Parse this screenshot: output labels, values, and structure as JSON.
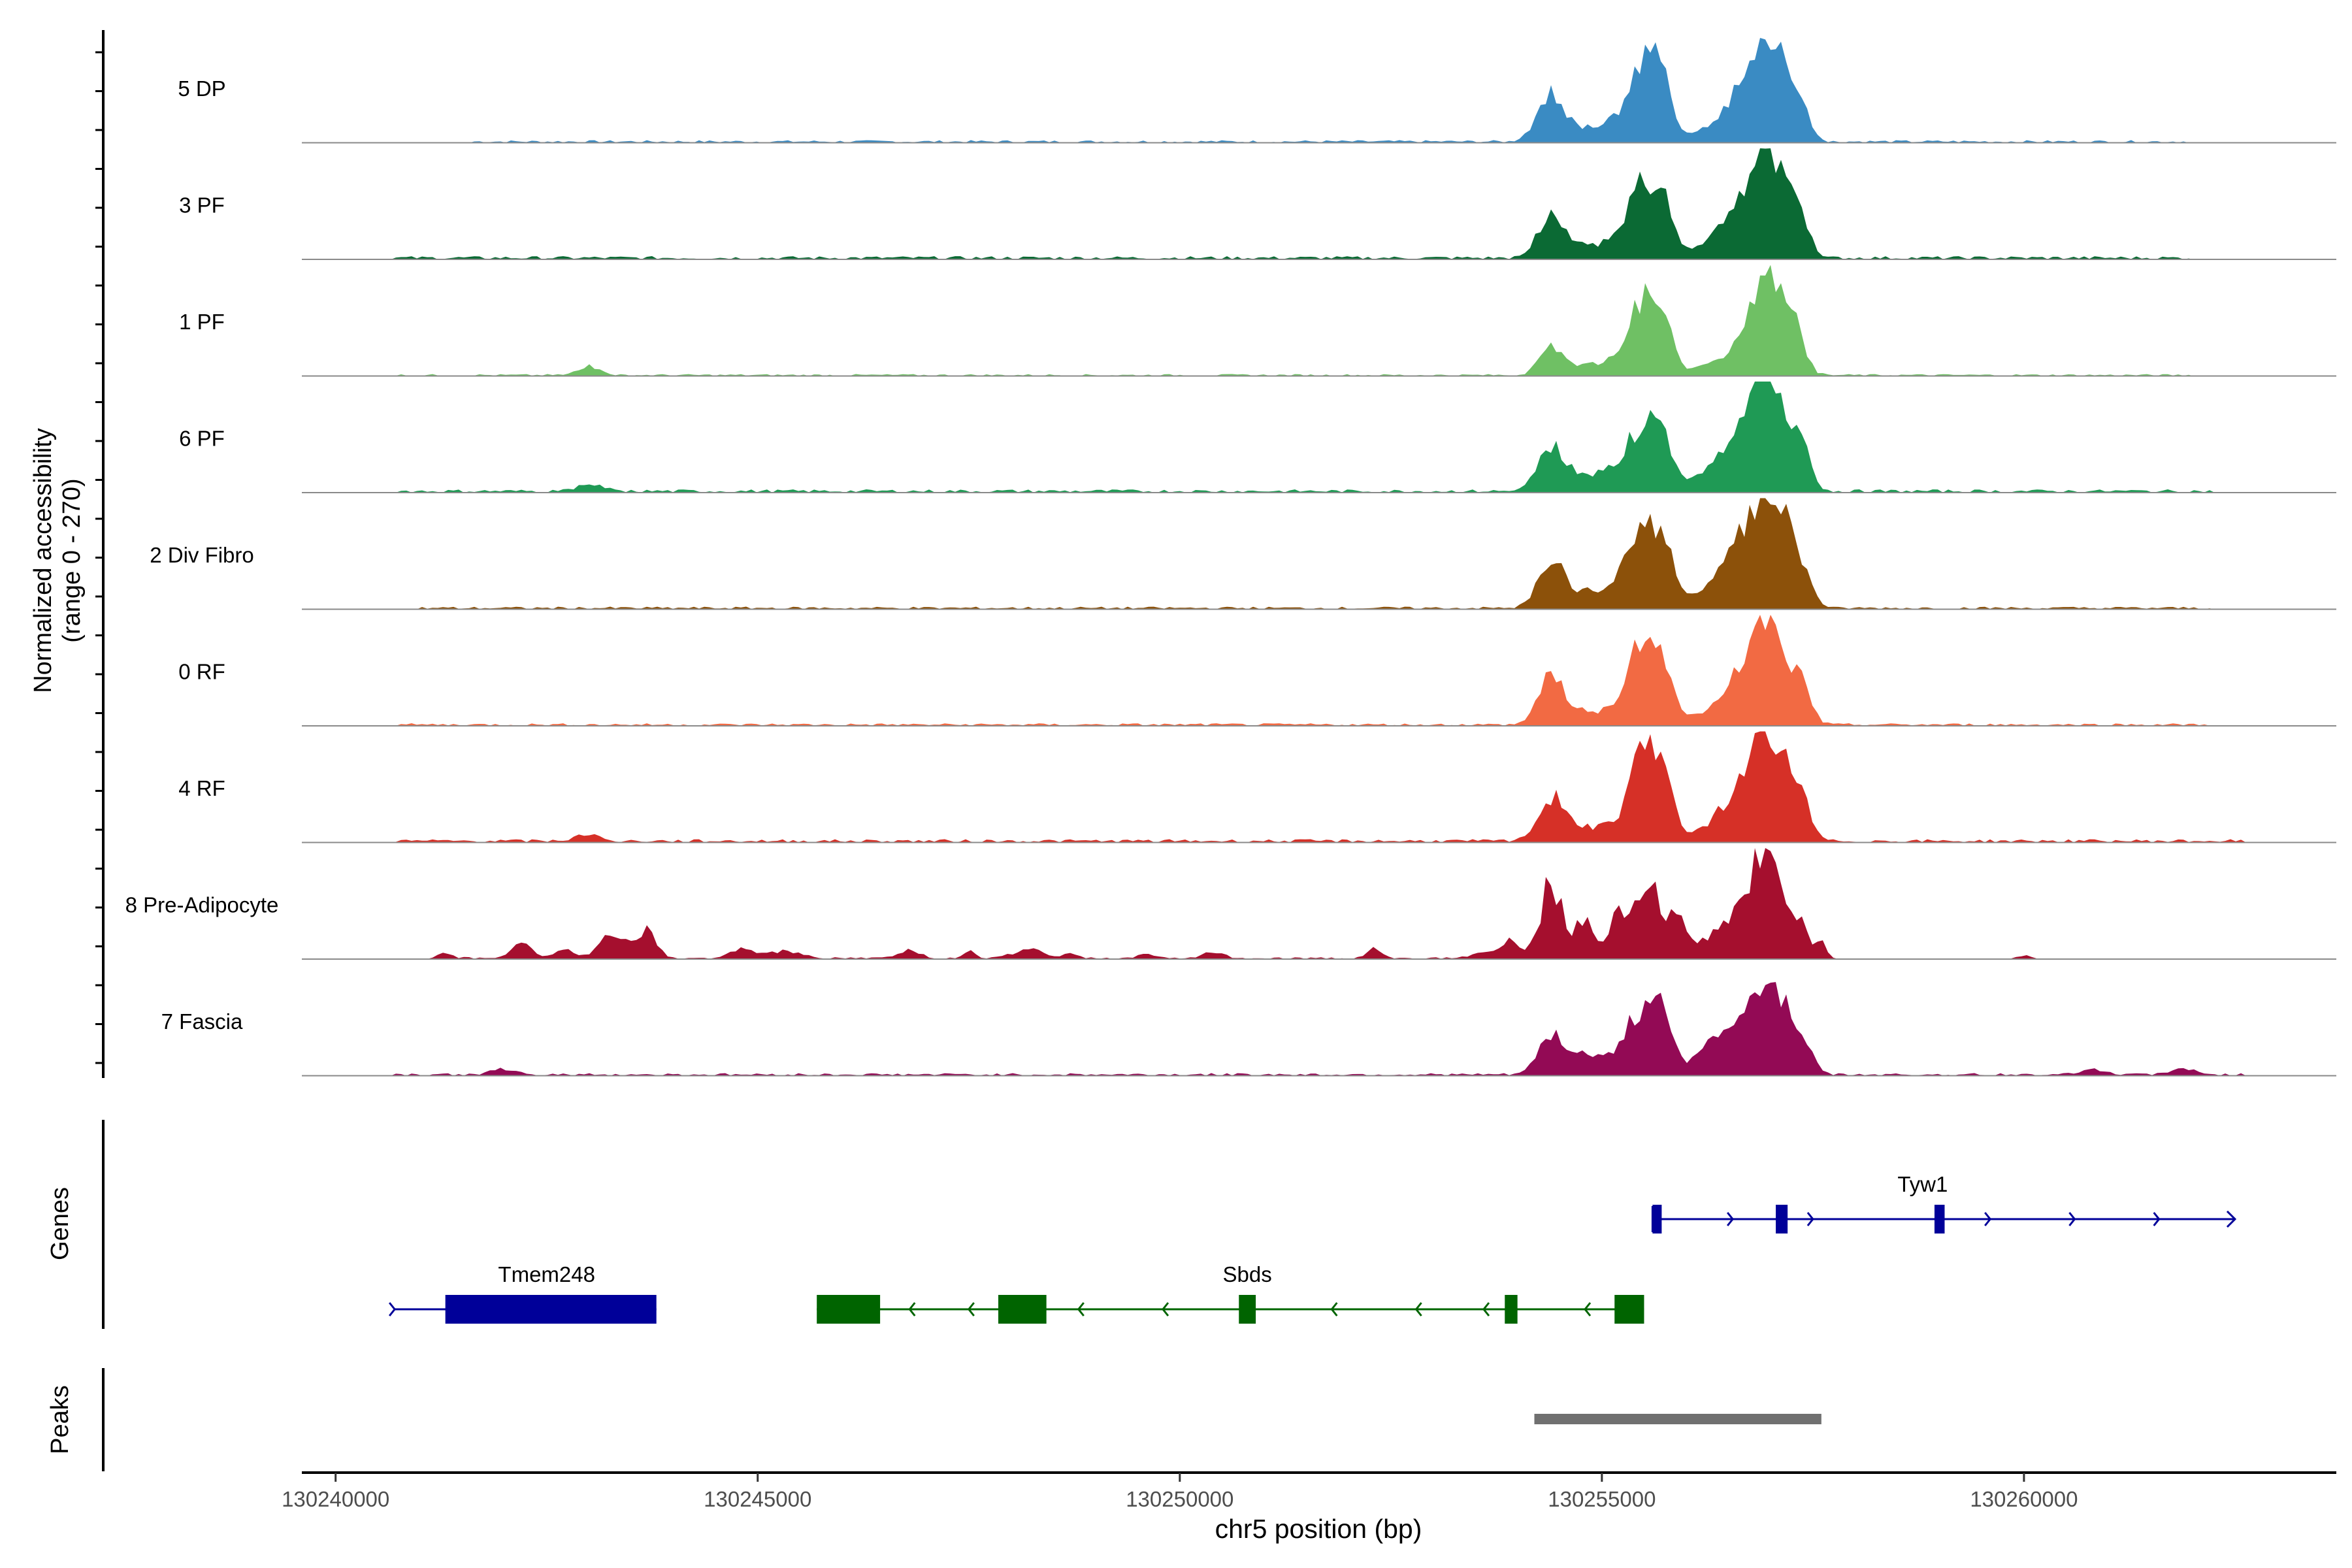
{
  "chart_data": {
    "type": "area",
    "title": "",
    "y_axis_label": [
      "Normalized accessibility",
      "(range 0 - 270)"
    ],
    "ylim": [
      0,
      270
    ],
    "x_axis": {
      "label": "chr5 position (bp)",
      "range": [
        130239600,
        130263700
      ],
      "ticks": [
        130240000,
        130245000,
        130250000,
        130255000,
        130260000
      ],
      "tick_labels": [
        "130240000",
        "130245000",
        "130250000",
        "130255000",
        "130260000"
      ]
    },
    "tracks": [
      {
        "name": "5 DP",
        "color": "#3a8bc3",
        "background": 4,
        "bg_range": [
          130241600,
          130262000
        ],
        "bumps": [],
        "peaks": [
          [
            130254400,
            0.45,
            160
          ],
          [
            130254900,
            0.15,
            300
          ],
          [
            130255500,
            0.7,
            200
          ],
          [
            130255700,
            0.38,
            120
          ],
          [
            130256300,
            0.12,
            220
          ],
          [
            130256700,
            0.45,
            230
          ],
          [
            130257000,
            0.95,
            190
          ],
          [
            130257350,
            0.3,
            120
          ]
        ]
      },
      {
        "name": "3 PF",
        "color": "#0b6a34",
        "background": 5,
        "bg_range": [
          130240700,
          130262000
        ],
        "bumps": [],
        "peaks": [
          [
            130254400,
            0.42,
            150
          ],
          [
            130254900,
            0.15,
            300
          ],
          [
            130255500,
            0.75,
            190
          ],
          [
            130255750,
            0.35,
            110
          ],
          [
            130256300,
            0.12,
            220
          ],
          [
            130256700,
            0.45,
            230
          ],
          [
            130257000,
            0.95,
            190
          ],
          [
            130257350,
            0.3,
            120
          ]
        ]
      },
      {
        "name": "1 PF",
        "color": "#6fc064",
        "background": 3,
        "bg_range": [
          130240700,
          130262000
        ],
        "bumps": [
          [
            130243000,
            0.1,
            120
          ]
        ],
        "peaks": [
          [
            130254400,
            0.3,
            130
          ],
          [
            130254900,
            0.12,
            280
          ],
          [
            130255500,
            0.78,
            180
          ],
          [
            130255750,
            0.35,
            110
          ],
          [
            130256300,
            0.1,
            220
          ],
          [
            130256700,
            0.3,
            200
          ],
          [
            130257000,
            0.95,
            180
          ],
          [
            130257300,
            0.35,
            120
          ]
        ]
      },
      {
        "name": "6 PF",
        "color": "#1f9a55",
        "background": 5,
        "bg_range": [
          130240700,
          130262200
        ],
        "bumps": [
          [
            130243000,
            0.07,
            150
          ]
        ],
        "peaks": [
          [
            130254400,
            0.42,
            150
          ],
          [
            130254900,
            0.2,
            300
          ],
          [
            130255500,
            0.68,
            190
          ],
          [
            130255750,
            0.35,
            110
          ],
          [
            130256300,
            0.15,
            240
          ],
          [
            130256700,
            0.5,
            250
          ],
          [
            130257000,
            0.9,
            200
          ],
          [
            130257350,
            0.35,
            130
          ]
        ]
      },
      {
        "name": "2 Div Fibro",
        "color": "#8c510a",
        "background": 4,
        "bg_range": [
          130241000,
          130262200
        ],
        "bumps": [],
        "peaks": [
          [
            130254400,
            0.45,
            150
          ],
          [
            130254900,
            0.18,
            300
          ],
          [
            130255500,
            0.85,
            190
          ],
          [
            130255750,
            0.4,
            110
          ],
          [
            130256300,
            0.15,
            240
          ],
          [
            130256700,
            0.55,
            250
          ],
          [
            130257000,
            0.98,
            200
          ],
          [
            130257350,
            0.35,
            130
          ]
        ]
      },
      {
        "name": "0 RF",
        "color": "#f26a43",
        "background": 4,
        "bg_range": [
          130240700,
          130262200
        ],
        "bumps": [],
        "peaks": [
          [
            130254400,
            0.45,
            150
          ],
          [
            130254900,
            0.15,
            300
          ],
          [
            130255500,
            0.82,
            180
          ],
          [
            130255750,
            0.4,
            110
          ],
          [
            130256300,
            0.12,
            220
          ],
          [
            130256700,
            0.45,
            230
          ],
          [
            130257000,
            0.95,
            190
          ],
          [
            130257350,
            0.35,
            120
          ]
        ]
      },
      {
        "name": "4 RF",
        "color": "#d63027",
        "background": 5,
        "bg_range": [
          130240700,
          130262600
        ],
        "bumps": [
          [
            130243000,
            0.08,
            130
          ]
        ],
        "peaks": [
          [
            130254400,
            0.42,
            150
          ],
          [
            130254900,
            0.15,
            300
          ],
          [
            130255500,
            0.92,
            180
          ],
          [
            130255750,
            0.45,
            110
          ],
          [
            130256300,
            0.12,
            220
          ],
          [
            130256700,
            0.45,
            230
          ],
          [
            130257000,
            0.95,
            190
          ],
          [
            130257350,
            0.35,
            120
          ]
        ]
      },
      {
        "name": "8 Pre-Adipocyte",
        "color": "#a50f2e",
        "background": 3,
        "bg_range": [
          130241100,
          130257600
        ],
        "bumps": [
          [
            130241300,
            0.06,
            80
          ],
          [
            130242200,
            0.14,
            120
          ],
          [
            130242700,
            0.1,
            100
          ],
          [
            130243300,
            0.25,
            160
          ],
          [
            130243700,
            0.3,
            100
          ],
          [
            130244800,
            0.1,
            120
          ],
          [
            130245300,
            0.08,
            200
          ],
          [
            130246800,
            0.1,
            120
          ],
          [
            130247500,
            0.07,
            80
          ],
          [
            130248200,
            0.1,
            160
          ],
          [
            130248700,
            0.06,
            80
          ],
          [
            130249600,
            0.05,
            80
          ],
          [
            130250400,
            0.06,
            120
          ],
          [
            130252300,
            0.1,
            80
          ],
          [
            130253600,
            0.06,
            120
          ],
          [
            130253900,
            0.2,
            100
          ],
          [
            130260000,
            0.04,
            80
          ]
        ],
        "peaks": [
          [
            130254400,
            0.75,
            130
          ],
          [
            130254800,
            0.4,
            110
          ],
          [
            130255200,
            0.45,
            110
          ],
          [
            130255550,
            0.75,
            160
          ],
          [
            130255900,
            0.35,
            100
          ],
          [
            130256300,
            0.18,
            200
          ],
          [
            130256700,
            0.5,
            200
          ],
          [
            130257000,
            1.0,
            160
          ],
          [
            130257350,
            0.3,
            100
          ],
          [
            130257600,
            0.2,
            60
          ]
        ]
      },
      {
        "name": "7 Fascia",
        "color": "#930a55",
        "background": 4,
        "bg_range": [
          130240700,
          130262600
        ],
        "bumps": [
          [
            130242000,
            0.05,
            150
          ],
          [
            130260800,
            0.06,
            120
          ],
          [
            130261900,
            0.06,
            120
          ]
        ],
        "peaks": [
          [
            130254400,
            0.35,
            150
          ],
          [
            130254900,
            0.2,
            300
          ],
          [
            130255500,
            0.65,
            190
          ],
          [
            130255750,
            0.35,
            110
          ],
          [
            130256300,
            0.2,
            240
          ],
          [
            130256700,
            0.45,
            250
          ],
          [
            130257000,
            0.75,
            200
          ],
          [
            130257350,
            0.3,
            130
          ]
        ]
      }
    ],
    "genes_panel_label": "Genes",
    "genes": [
      {
        "name": "Tyw1",
        "strand": "+",
        "color": "#000099",
        "start": 130255600,
        "end": 130262500,
        "exons": [
          [
            130255600,
            130255630
          ],
          [
            130257060,
            130257200
          ],
          [
            130258940,
            130259060
          ]
        ],
        "arrows": [
          130256550,
          130257500,
          130259600,
          130260600,
          130261600
        ]
      },
      {
        "name": "Tmem248",
        "strand": "+",
        "color": "#000099",
        "start": 130240700,
        "end": 130243800,
        "exons": [
          [
            130241300,
            130243800
          ]
        ],
        "arrows": [
          130240700
        ]
      },
      {
        "name": "Sbds",
        "strand": "-",
        "color": "#006400",
        "start": 130245700,
        "end": 130255500,
        "exons": [
          [
            130245700,
            130246450
          ],
          [
            130247850,
            130248420
          ],
          [
            130250700,
            130250900
          ],
          [
            130253850,
            130254000
          ],
          [
            130255150,
            130255500
          ]
        ],
        "arrows": [
          130246800,
          130247500,
          130248800,
          130249800,
          130250800,
          130251800,
          130252800,
          130253600,
          130254800
        ]
      }
    ],
    "peaks_panel_label": "Peaks",
    "peak_regions": [
      {
        "start": 130254200,
        "end": 130257600,
        "color": "#707070"
      }
    ]
  }
}
